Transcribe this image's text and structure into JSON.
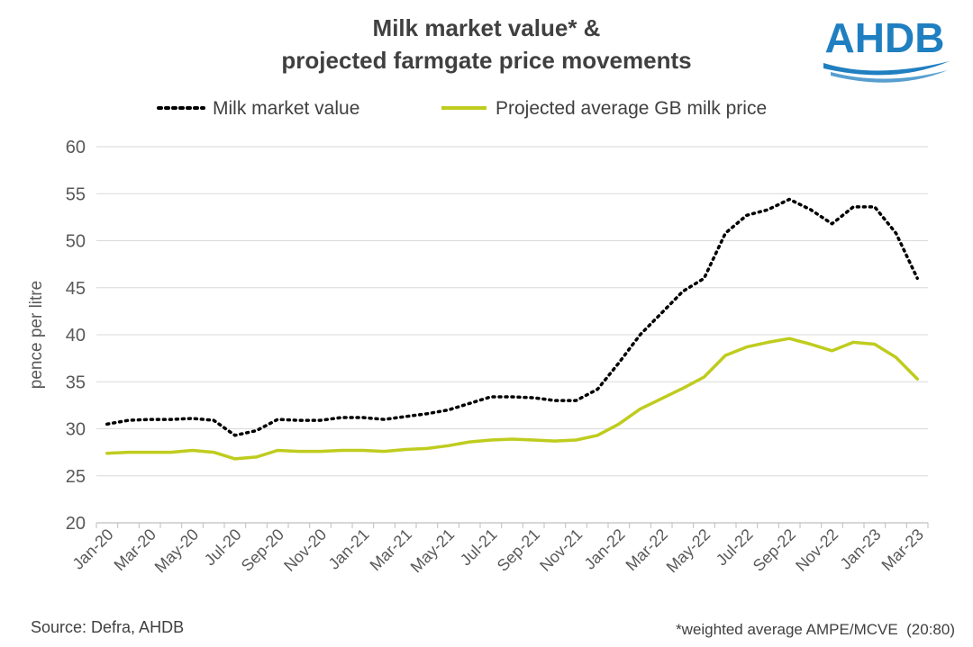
{
  "chart_data": {
    "type": "line",
    "title_line1": "Milk market value* &",
    "title_line2": "projected farmgate price movements",
    "ylabel": "pence per litre",
    "ylim": [
      20,
      60
    ],
    "yticks": [
      "20",
      "25",
      "30",
      "35",
      "40",
      "45",
      "50",
      "55",
      "60"
    ],
    "grid": true,
    "legend_position": "top",
    "x": [
      "Jan-20",
      "Feb-20",
      "Mar-20",
      "Apr-20",
      "May-20",
      "Jun-20",
      "Jul-20",
      "Aug-20",
      "Sep-20",
      "Oct-20",
      "Nov-20",
      "Dec-20",
      "Jan-21",
      "Feb-21",
      "Mar-21",
      "Apr-21",
      "May-21",
      "Jun-21",
      "Jul-21",
      "Aug-21",
      "Sep-21",
      "Oct-21",
      "Nov-21",
      "Dec-21",
      "Jan-22",
      "Feb-22",
      "Mar-22",
      "Apr-22",
      "May-22",
      "Jun-22",
      "Jul-22",
      "Aug-22",
      "Sep-22",
      "Oct-22",
      "Nov-22",
      "Dec-22",
      "Jan-23",
      "Feb-23",
      "Mar-23"
    ],
    "xtick_labels": [
      "Jan-20",
      "Mar-20",
      "May-20",
      "Jul-20",
      "Sep-20",
      "Nov-20",
      "Jan-21",
      "Mar-21",
      "May-21",
      "Jul-21",
      "Sep-21",
      "Nov-21",
      "Jan-22",
      "Mar-22",
      "May-22",
      "Jul-22",
      "Sep-22",
      "Nov-22",
      "Jan-23",
      "Mar-23"
    ],
    "series": [
      {
        "name": "Milk market value",
        "color": "#000000",
        "style": "dotted",
        "values": [
          30.5,
          30.9,
          31.0,
          31.0,
          31.1,
          30.9,
          29.3,
          29.8,
          31.0,
          30.9,
          30.9,
          31.2,
          31.2,
          31.0,
          31.3,
          31.6,
          32.0,
          32.7,
          33.4,
          33.4,
          33.3,
          33.0,
          33.0,
          34.2,
          37.0,
          40.0,
          42.3,
          44.6,
          46.0,
          50.8,
          52.7,
          53.3,
          54.4,
          53.3,
          51.8,
          53.6,
          53.6,
          50.8,
          46.0
        ]
      },
      {
        "name": "Projected average GB milk price",
        "color": "#bfcc1e",
        "style": "solid",
        "values": [
          27.4,
          27.5,
          27.5,
          27.5,
          27.7,
          27.5,
          26.8,
          27.0,
          27.7,
          27.6,
          27.6,
          27.7,
          27.7,
          27.6,
          27.8,
          27.9,
          28.2,
          28.6,
          28.8,
          28.9,
          28.8,
          28.7,
          28.8,
          29.3,
          30.5,
          32.1,
          33.2,
          34.3,
          35.5,
          37.8,
          38.7,
          39.2,
          39.6,
          39.0,
          38.3,
          39.2,
          39.0,
          37.6,
          35.3
        ]
      }
    ],
    "source": "Source: Defra, AHDB",
    "footnote": "*weighted average AMPE/MCVE  (20:80)"
  },
  "brand": {
    "logo_text": "AHDB",
    "logo_color": "#1f7fc0"
  }
}
